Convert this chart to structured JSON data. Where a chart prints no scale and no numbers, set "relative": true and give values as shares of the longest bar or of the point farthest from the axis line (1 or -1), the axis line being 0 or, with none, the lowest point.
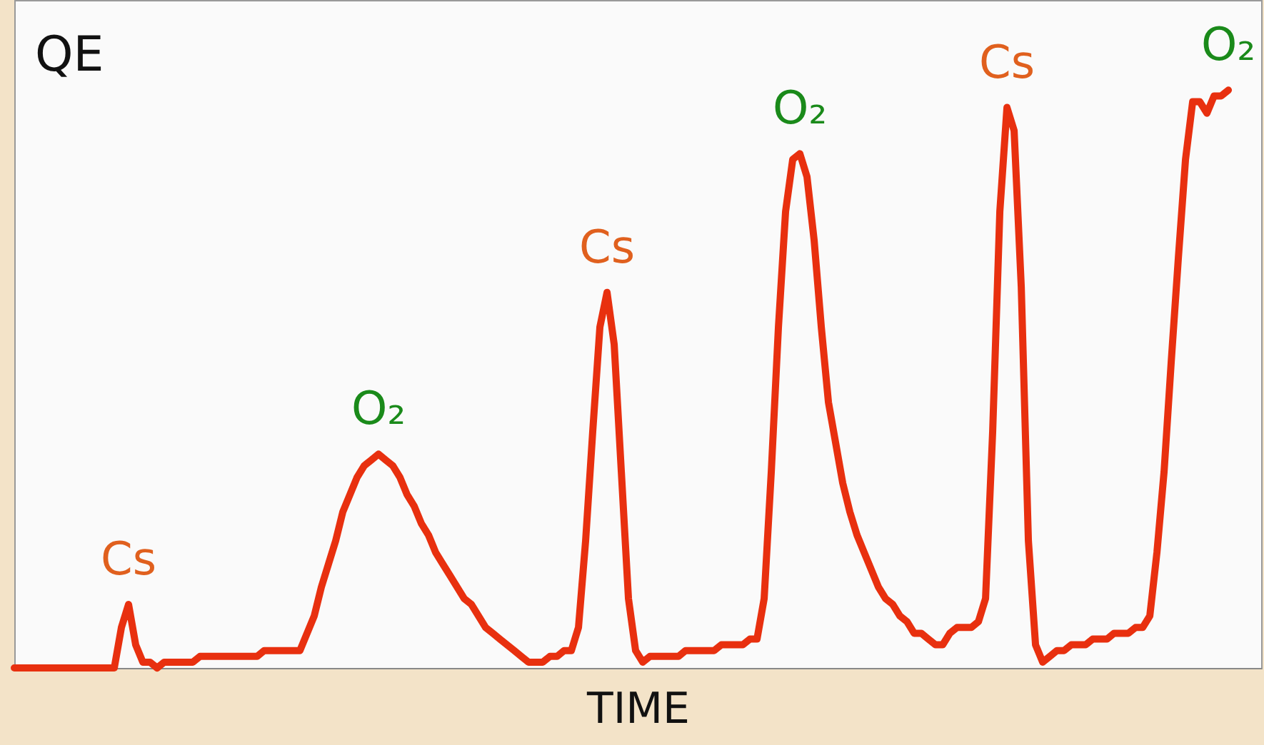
{
  "chart_data": {
    "type": "line",
    "relative": true,
    "xlabel": "TIME",
    "ylabel": "QE",
    "categories": [
      null,
      null,
      null,
      null,
      null,
      null,
      null,
      null,
      null,
      null,
      null,
      null,
      null,
      null,
      null,
      null,
      null,
      null,
      null,
      null,
      null,
      null,
      null,
      null,
      null,
      null,
      null,
      null,
      null,
      null,
      null,
      null,
      null,
      null,
      null,
      null,
      null,
      null,
      null,
      null,
      null,
      null,
      null,
      null,
      null,
      null,
      null,
      null,
      null,
      null,
      null,
      null,
      null,
      null,
      null,
      null,
      null,
      null,
      null,
      null,
      null,
      null,
      null,
      null,
      null,
      null,
      null,
      null,
      null,
      null,
      null,
      null,
      null,
      null,
      null,
      null,
      null,
      null,
      null,
      null,
      null,
      null,
      null,
      null,
      null,
      null,
      null,
      null,
      null,
      null,
      null,
      null,
      null,
      null,
      null,
      null,
      null,
      null,
      null,
      null,
      null,
      null,
      null,
      null,
      null,
      null,
      null,
      null,
      null,
      null,
      null,
      null,
      null,
      null,
      null,
      null,
      null,
      null,
      null,
      null,
      null,
      null,
      null,
      null,
      null,
      null,
      null,
      null,
      null,
      null,
      null,
      null,
      null,
      null,
      null,
      null,
      null,
      null,
      null,
      null,
      null,
      null,
      null,
      null,
      null,
      null,
      null,
      null,
      null,
      null,
      null,
      null,
      null,
      null,
      null,
      null,
      null,
      null,
      null,
      null,
      null,
      null,
      null,
      null,
      null,
      null,
      null,
      null,
      null,
      null,
      null
    ],
    "series": [
      {
        "color": "#e8300f",
        "values": [
          0,
          0,
          0,
          0,
          0,
          0,
          0,
          0,
          0,
          0,
          0,
          0,
          0,
          0,
          0,
          0.07,
          0.11,
          0.04,
          0.01,
          0.01,
          0,
          0.01,
          0.01,
          0.01,
          0.01,
          0.01,
          0.02,
          0.02,
          0.02,
          0.02,
          0.02,
          0.02,
          0.02,
          0.02,
          0.02,
          0.03,
          0.03,
          0.03,
          0.03,
          0.03,
          0.03,
          0.06,
          0.09,
          0.14,
          0.18,
          0.22,
          0.27,
          0.3,
          0.33,
          0.35,
          0.36,
          0.37,
          0.36,
          0.35,
          0.33,
          0.3,
          0.28,
          0.25,
          0.23,
          0.2,
          0.18,
          0.16,
          0.14,
          0.12,
          0.11,
          0.09,
          0.07,
          0.06,
          0.05,
          0.04,
          0.03,
          0.02,
          0.01,
          0.01,
          0.01,
          0.02,
          0.02,
          0.03,
          0.03,
          0.07,
          0.22,
          0.41,
          0.59,
          0.65,
          0.56,
          0.34,
          0.12,
          0.03,
          0.01,
          0.02,
          0.02,
          0.02,
          0.02,
          0.02,
          0.03,
          0.03,
          0.03,
          0.03,
          0.03,
          0.04,
          0.04,
          0.04,
          0.04,
          0.05,
          0.05,
          0.12,
          0.34,
          0.59,
          0.79,
          0.88,
          0.89,
          0.85,
          0.74,
          0.59,
          0.46,
          0.39,
          0.32,
          0.27,
          0.23,
          0.2,
          0.17,
          0.14,
          0.12,
          0.11,
          0.09,
          0.08,
          0.06,
          0.06,
          0.05,
          0.04,
          0.04,
          0.06,
          0.07,
          0.07,
          0.07,
          0.08,
          0.12,
          0.41,
          0.79,
          0.97,
          0.93,
          0.66,
          0.22,
          0.04,
          0.01,
          0.02,
          0.03,
          0.03,
          0.04,
          0.04,
          0.04,
          0.05,
          0.05,
          0.05,
          0.06,
          0.06,
          0.06,
          0.07,
          0.07,
          0.09,
          0.2,
          0.34,
          0.53,
          0.71,
          0.88,
          0.98,
          0.98,
          0.96,
          0.99,
          0.99,
          1.0
        ]
      }
    ],
    "annotations": [
      {
        "text": "Cs",
        "y": 0.11
      },
      {
        "text": "O₂",
        "y": 0.37
      },
      {
        "text": "Cs",
        "y": 0.65
      },
      {
        "text": "O₂",
        "y": 0.89
      },
      {
        "text": "Cs",
        "y": 0.97
      },
      {
        "text": "O₂",
        "y": 1.0
      }
    ]
  }
}
